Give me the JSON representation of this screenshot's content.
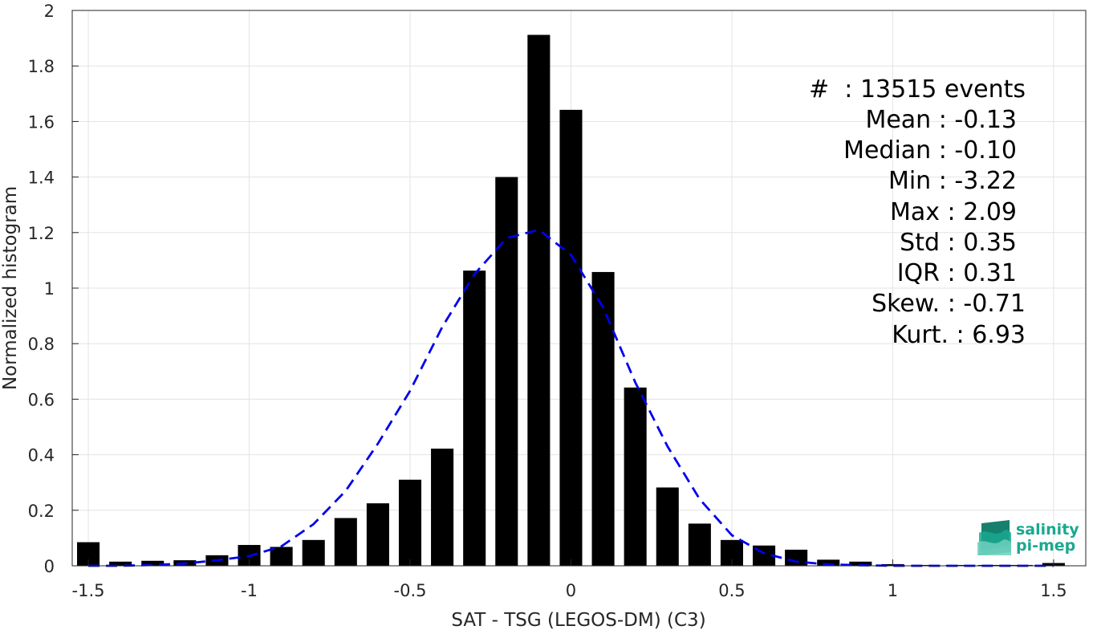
{
  "chart_data": {
    "type": "bar",
    "xlabel": "SAT - TSG (LEGOS-DM) (C3)",
    "ylabel": "Normalized histogram",
    "xlim": [
      -1.55,
      1.6
    ],
    "ylim": [
      0,
      2
    ],
    "xticks": [
      -1.5,
      -1,
      -0.5,
      0,
      0.5,
      1,
      1.5
    ],
    "xtick_labels": [
      "-1.5",
      "-1",
      "-0.5",
      "0",
      "0.5",
      "1",
      "1.5"
    ],
    "yticks": [
      0,
      0.2,
      0.4,
      0.6,
      0.8,
      1,
      1.2,
      1.4,
      1.6,
      1.8,
      2
    ],
    "ytick_labels": [
      "0",
      "0.2",
      "0.4",
      "0.6",
      "0.8",
      "1",
      "1.2",
      "1.4",
      "1.6",
      "1.8",
      "2"
    ],
    "grid": true,
    "bar_width": 0.07,
    "bar_color": "#000000",
    "bins": {
      "x": [
        -1.5,
        -1.4,
        -1.3,
        -1.2,
        -1.1,
        -1.0,
        -0.9,
        -0.8,
        -0.7,
        -0.6,
        -0.5,
        -0.4,
        -0.3,
        -0.2,
        -0.1,
        0.0,
        0.1,
        0.2,
        0.3,
        0.4,
        0.5,
        0.6,
        0.7,
        0.8,
        0.9,
        1.0,
        1.1,
        1.2,
        1.3,
        1.4,
        1.5
      ],
      "values": [
        0.085,
        0.015,
        0.018,
        0.02,
        0.038,
        0.075,
        0.068,
        0.093,
        0.172,
        0.225,
        0.31,
        0.422,
        1.063,
        1.4,
        1.912,
        1.642,
        1.058,
        0.642,
        0.282,
        0.152,
        0.093,
        0.073,
        0.058,
        0.022,
        0.015,
        0.006,
        0.003,
        0.003,
        0.003,
        0.003,
        0.01
      ]
    },
    "fit_curve": {
      "style": "dashed",
      "color": "#0000ee",
      "x": [
        -1.5,
        -1.4,
        -1.3,
        -1.2,
        -1.1,
        -1.0,
        -0.9,
        -0.8,
        -0.7,
        -0.6,
        -0.5,
        -0.4,
        -0.3,
        -0.2,
        -0.1,
        0.0,
        0.1,
        0.2,
        0.3,
        0.4,
        0.5,
        0.6,
        0.7,
        0.8,
        0.9,
        1.0,
        1.1,
        1.2,
        1.3,
        1.4,
        1.5
      ],
      "values": [
        0.0,
        0.0,
        0.003,
        0.008,
        0.02,
        0.035,
        0.07,
        0.15,
        0.27,
        0.44,
        0.63,
        0.86,
        1.05,
        1.18,
        1.21,
        1.12,
        0.93,
        0.66,
        0.43,
        0.24,
        0.11,
        0.045,
        0.015,
        0.005,
        0.002,
        0.0,
        0.0,
        0.0,
        0.0,
        0.0,
        0.0
      ]
    }
  },
  "stats": {
    "count": "#  : 13515 events",
    "mean": "Mean : -0.13",
    "median": "Median : -0.10",
    "min": "Min : -3.22",
    "max": "Max : 2.09",
    "std": "Std : 0.35",
    "iqr": "IQR : 0.31",
    "skew": "Skew. : -0.71",
    "kurt": "Kurt. : 6.93"
  },
  "logo": {
    "line1": "salinity",
    "line2": "pi-mep",
    "color": "#1aa88f"
  }
}
